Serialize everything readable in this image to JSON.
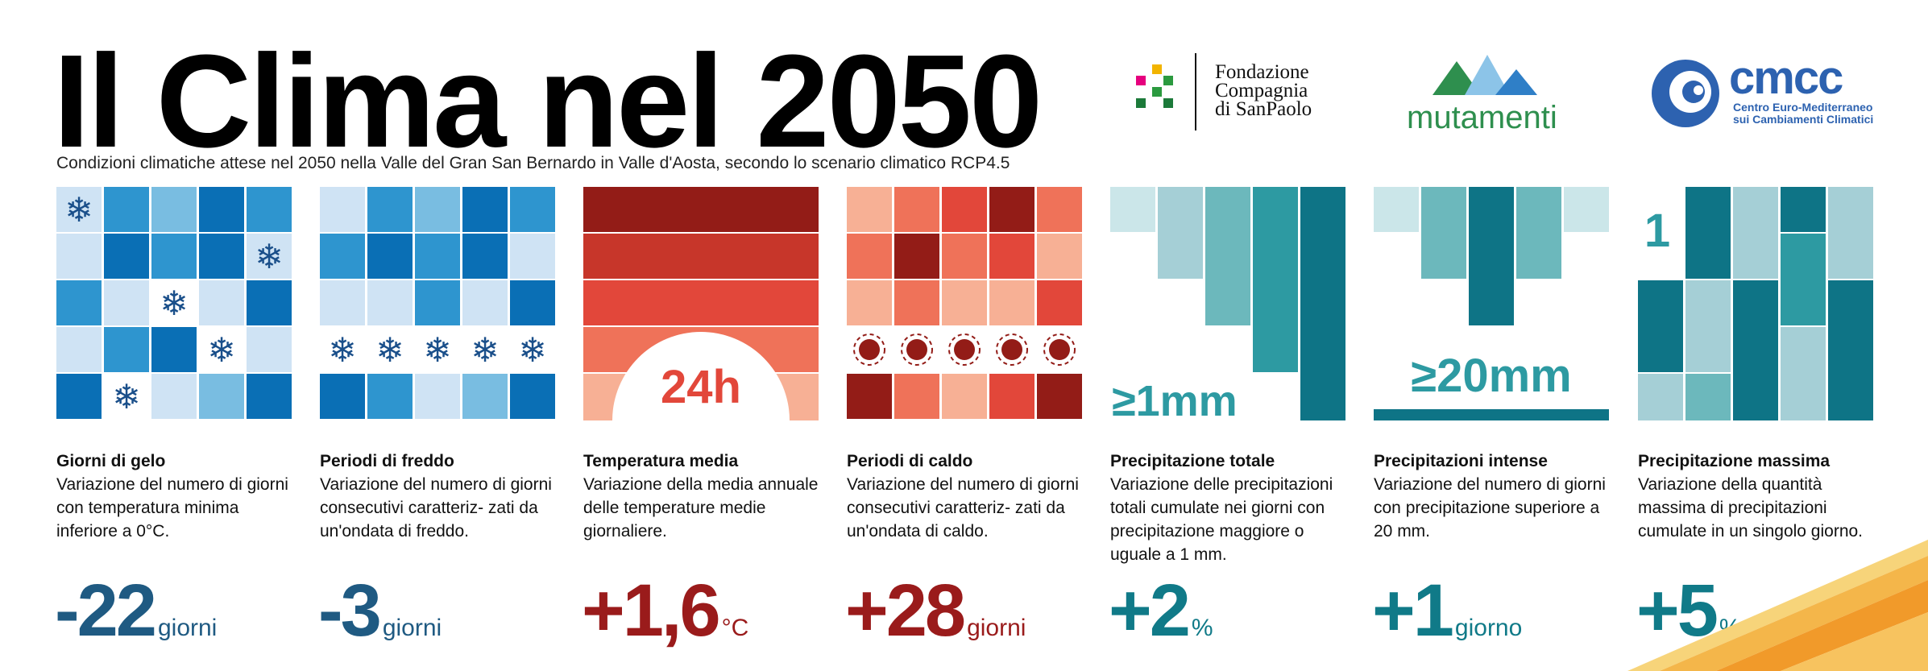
{
  "header": {
    "title": "Il Clima nel 2050",
    "subtitle": "Condizioni climatiche attese nel 2050 nella Valle del Gran San Bernardo in Valle d'Aosta,  secondo lo scenario climatico RCP4.5"
  },
  "logos": {
    "fcsp": "Fondazione\nCompagnia\ndi SanPaolo",
    "mutamenti": "mutamenti",
    "cmcc_big": "cmcc",
    "cmcc_small": "Centro Euro-Mediterraneo\nsui Cambiamenti Climatici"
  },
  "panels": [
    {
      "title": "Giorni di gelo",
      "desc": "Variazione del numero di giorni con temperatura minima inferiore a 0°C.",
      "value": "-22",
      "unit": "giorni"
    },
    {
      "title": "Periodi di freddo",
      "desc": "Variazione del numero di giorni consecutivi caratteriz- zati da un'ondata di freddo.",
      "value": "-3",
      "unit": "giorni"
    },
    {
      "title": "Temperatura media",
      "desc": "Variazione della media annuale delle temperature medie giornaliere.",
      "value": "+1,6",
      "unit": "°C",
      "badge": "24h"
    },
    {
      "title": "Periodi di caldo",
      "desc": "Variazione del numero di giorni consecutivi caratteriz- zati da un'ondata di caldo.",
      "value": "+28",
      "unit": "giorni"
    },
    {
      "title": "Precipitazione totale",
      "desc": "Variazione delle precipitazioni totali cumulate nei giorni con precipitazione maggiore o uguale a 1 mm.",
      "value": "+2",
      "unit": "%",
      "badge": "≥1mm"
    },
    {
      "title": "Precipitazioni intense",
      "desc": "Variazione del numero di giorni con precipitazione superiore a 20 mm.",
      "value": "+1",
      "unit": "giorno",
      "badge": "≥20mm"
    },
    {
      "title": "Precipitazione massima",
      "desc": "Variazione della quantità massima di precipitazioni cumulate in un singolo giorno.",
      "value": "+5",
      "unit": "%",
      "badge": "1"
    }
  ],
  "colors": {
    "blue_dark": "#0a6fb5",
    "blue_mid": "#2e95cf",
    "blue_light": "#79bde1",
    "blue_pale": "#cfe3f4",
    "snow": "#1a4f8a",
    "red_dark": "#931c17",
    "red_mid": "#c7362a",
    "red": "#e2473a",
    "red_soft": "#ef7259",
    "red_pale": "#f7b095",
    "teal_dark": "#0e7486",
    "teal_mid": "#2d9aa2",
    "teal": "#6cb8bc",
    "teal_light": "#a5cfd6",
    "teal_pale": "#cbe6e9",
    "value_blue": "#1f5a82",
    "value_red": "#9a1b1b",
    "value_teal": "#107a88"
  }
}
